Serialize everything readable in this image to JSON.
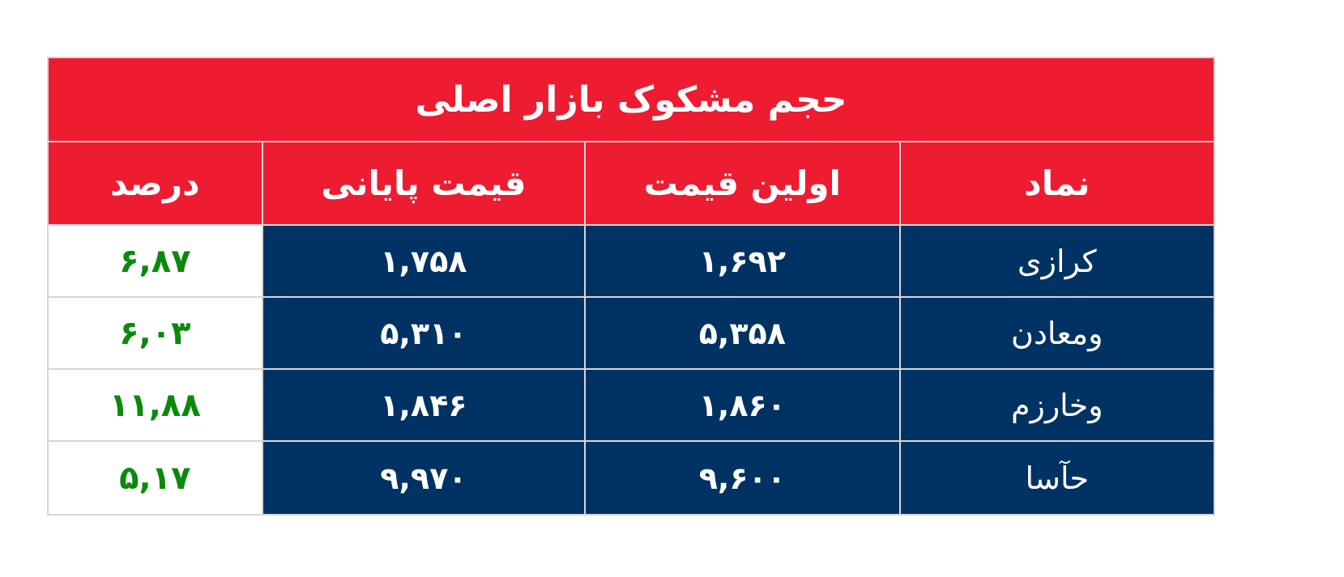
{
  "title": "حجم مشکوک بازار اصلی",
  "columns": [
    "درصد",
    "قیمت پایانی",
    "اولین قیمت",
    "نماد"
  ],
  "rows": [
    {
      "symbol": "کرازی",
      "first_price": "۱,۶۹۲",
      "last_price": "۱,۷۵۸",
      "percent": "۶,۸۷"
    },
    {
      "symbol": "ومعادن",
      "first_price": "۵,۳۵۸",
      "last_price": "۵,۳۱۰",
      "percent": "۶,۰۳"
    },
    {
      "symbol": "وخارزم",
      "first_price": "۱,۸۶۰",
      "last_price": "۱,۸۴۶",
      "percent": "۱۱,۸۸"
    },
    {
      "symbol": "حآسا",
      "first_price": "۹,۶۰۰",
      "last_price": "۹,۹۷۰",
      "percent": "۵,۱۷"
    }
  ],
  "colors": {
    "header": "#ed1c31",
    "body": "#003264",
    "percent": "#0a8a0a"
  }
}
